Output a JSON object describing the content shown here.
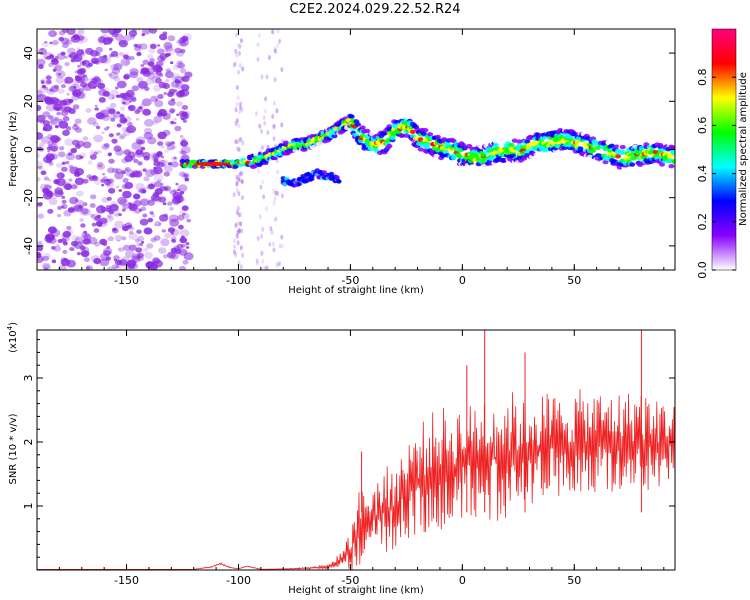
{
  "title": "C2E2.2024.029.22.52.R24",
  "colors": {
    "snr_line": "#ee2222",
    "axis": "#000000",
    "noise": "#8a2be2"
  },
  "chart_data": [
    {
      "type": "heatmap",
      "xlabel": "Height of straight line (km)",
      "ylabel": "Frequency (Hz)",
      "xlim": [
        -190,
        95
      ],
      "ylim": [
        -50,
        50
      ],
      "x_ticks": [
        -150,
        -100,
        -50,
        0,
        50
      ],
      "y_ticks": [
        -40,
        -20,
        0,
        20,
        40
      ],
      "colorbar": {
        "label": "Normalized spectral amplitude",
        "range": [
          0.0,
          1.0
        ],
        "ticks": [
          "0.0",
          "0.2",
          "0.4",
          "0.6",
          "0.8"
        ],
        "colors": [
          "#ffffff",
          "#8b00ff",
          "#0000ff",
          "#00ffff",
          "#00ff00",
          "#ffff00",
          "#ff0000",
          "#ff0080"
        ]
      },
      "noise_region_x": [
        -190,
        -122
      ],
      "main_track": {
        "x": [
          -125,
          -120,
          -110,
          -100,
          -95,
          -90,
          -85,
          -80,
          -75,
          -70,
          -65,
          -60,
          -55,
          -50,
          -45,
          -40,
          -35,
          -30,
          -25,
          -20,
          -15,
          -10,
          -5,
          0,
          5,
          10,
          15,
          20,
          25,
          30,
          35,
          40,
          45,
          50,
          55,
          60,
          65,
          70,
          75,
          80,
          85,
          90,
          95
        ],
        "freq": [
          -6,
          -6,
          -6,
          -6,
          -5,
          -4,
          -2,
          0,
          2,
          2,
          4,
          6,
          9,
          12,
          5,
          2,
          3,
          8,
          10,
          5,
          3,
          1,
          0,
          -2,
          -3,
          -3,
          -1,
          0,
          -1,
          1,
          3,
          3,
          4,
          3,
          2,
          0,
          -1,
          -3,
          -3,
          -2,
          -1,
          -2,
          -3
        ]
      },
      "secondary_track": {
        "x": [
          -80,
          -75,
          -70,
          -65,
          -60,
          -55
        ],
        "freq": [
          -13,
          -14,
          -12,
          -10,
          -11,
          -12
        ]
      }
    },
    {
      "type": "line",
      "xlabel": "Height of straight line (km)",
      "ylabel": "SNR (10 * v/v)",
      "y_scale_label": "(x10",
      "y_scale_exp": "4",
      "xlim": [
        -190,
        95
      ],
      "ylim": [
        0,
        3.75
      ],
      "x_ticks": [
        -150,
        -100,
        -50,
        0,
        50
      ],
      "y_ticks": [
        1,
        2,
        3
      ],
      "envelope": {
        "x": [
          -190,
          -120,
          -112,
          -108,
          -104,
          -100,
          -96,
          -90,
          -75,
          -60,
          -55,
          -50,
          -48,
          -45,
          -40,
          -35,
          -30,
          -25,
          -20,
          -15,
          -10,
          -5,
          0,
          5,
          10,
          15,
          20,
          25,
          30,
          35,
          40,
          45,
          50,
          55,
          60,
          65,
          70,
          75,
          80,
          85,
          90,
          95
        ],
        "base": [
          0.01,
          0.01,
          0.05,
          0.1,
          0.04,
          0.02,
          0.06,
          0.01,
          0.02,
          0.05,
          0.15,
          0.3,
          0.55,
          0.7,
          0.8,
          0.9,
          1.0,
          1.2,
          1.4,
          1.5,
          1.6,
          1.6,
          1.7,
          1.7,
          1.75,
          1.75,
          1.8,
          1.8,
          1.85,
          1.9,
          1.9,
          1.95,
          1.95,
          2.0,
          2.0,
          2.0,
          2.0,
          2.0,
          2.0,
          1.95,
          2.0,
          2.0
        ],
        "amp": [
          0.0,
          0.0,
          0.01,
          0.02,
          0.01,
          0.0,
          0.01,
          0.0,
          0.01,
          0.03,
          0.1,
          0.3,
          0.6,
          0.6,
          0.6,
          0.7,
          0.7,
          0.8,
          0.9,
          0.9,
          1.0,
          0.9,
          0.9,
          0.9,
          1.1,
          1.0,
          1.0,
          1.0,
          0.9,
          0.9,
          0.9,
          0.8,
          0.9,
          0.8,
          0.8,
          0.8,
          0.8,
          0.8,
          0.9,
          0.7,
          0.7,
          0.6
        ]
      },
      "peaks": [
        {
          "x": -45,
          "y": 1.85
        },
        {
          "x": 2,
          "y": 3.2
        },
        {
          "x": 10,
          "y": 3.75
        },
        {
          "x": 28,
          "y": 3.4
        },
        {
          "x": 80,
          "y": 3.75
        }
      ]
    }
  ]
}
